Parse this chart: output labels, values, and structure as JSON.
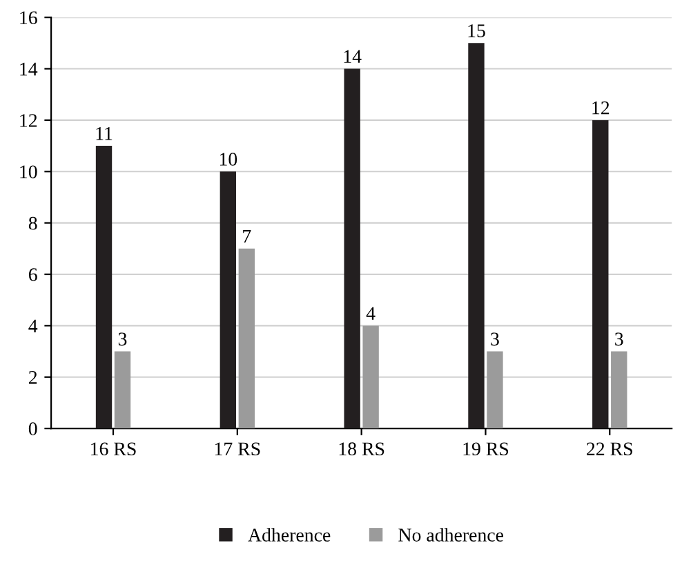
{
  "chart_data": {
    "type": "bar",
    "categories": [
      "16 RS",
      "17 RS",
      "18 RS",
      "19 RS",
      "22 RS"
    ],
    "series": [
      {
        "name": "Adherence",
        "color": "#231f20",
        "values": [
          11,
          10,
          14,
          15,
          12
        ]
      },
      {
        "name": "No adherence",
        "color": "#9b9b9b",
        "values": [
          3,
          7,
          4,
          3,
          3
        ]
      }
    ],
    "ylim": [
      0,
      16
    ],
    "yticks": [
      0,
      2,
      4,
      6,
      8,
      10,
      12,
      14,
      16
    ],
    "grid": "y",
    "legend": "bottom",
    "data_labels": true
  }
}
